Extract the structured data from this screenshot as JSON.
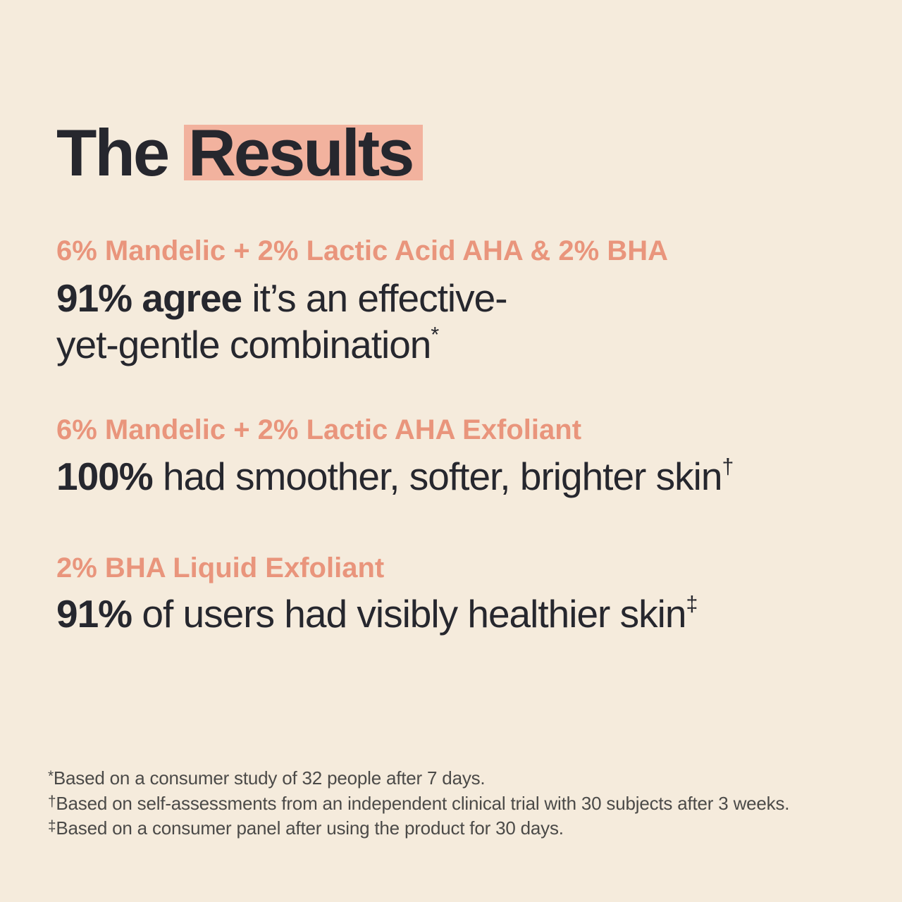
{
  "colors": {
    "background": "#f5ebdc",
    "text_dark": "#26272e",
    "accent_salmon": "#e9957c",
    "highlight": "#f2b29e",
    "footnote_gray": "#4b4a48"
  },
  "title": {
    "prefix": "The ",
    "highlighted": "Results"
  },
  "sections": [
    {
      "header": "6% Mandelic + 2% Lactic Acid AHA & 2% BHA",
      "stat_bold": "91% agree",
      "stat_rest_line1": " it’s an effective-",
      "stat_line2": "yet-gentle combination",
      "sup": "*"
    },
    {
      "header": "6% Mandelic + 2% Lactic AHA Exfoliant",
      "stat_bold": "100%",
      "stat_rest": " had smoother, softer, brighter skin",
      "sup": "†"
    },
    {
      "header": "2% BHA Liquid Exfoliant",
      "stat_bold": "91%",
      "stat_rest": " of users had visibly healthier skin",
      "sup": "‡"
    }
  ],
  "footnotes": [
    {
      "symbol": "*",
      "text": "Based on a consumer study of 32 people after 7 days."
    },
    {
      "symbol": "†",
      "text": "Based on self-assessments from an independent clinical trial with 30 subjects after 3 weeks."
    },
    {
      "symbol": "‡",
      "text": "Based on a consumer panel after using the product for 30 days."
    }
  ]
}
